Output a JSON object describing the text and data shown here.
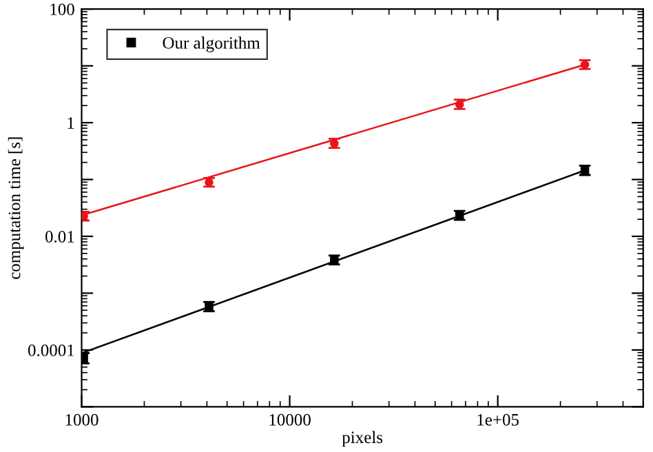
{
  "chart_data": {
    "type": "scatter",
    "xlabel": "pixels",
    "ylabel": "computation time [s]",
    "log": "xy",
    "grid": false,
    "legend": "top left",
    "xlim": [
      1000,
      500000
    ],
    "xticks": [
      1000,
      10000,
      {
        "value": 100000,
        "label": "1e+05"
      }
    ],
    "ylim": [
      1e-05,
      100
    ],
    "yticks": [
      {
        "value": 1e-05,
        "label": null
      },
      0.0001,
      {
        "value": 0.001,
        "label": null
      },
      0.01,
      {
        "value": 0.1,
        "label": null
      },
      1,
      {
        "value": 10,
        "label": null
      },
      100
    ],
    "series": [
      {
        "color": "#e8141c",
        "marker": "circle",
        "x": [
          1024,
          4096,
          16384,
          65536,
          262144
        ],
        "values": [
          0.0227,
          0.089,
          0.43,
          2.1,
          10.5
        ],
        "errors": [
          [
            0.019,
            0.027
          ],
          [
            0.075,
            0.106
          ],
          [
            0.36,
            0.52
          ],
          [
            1.75,
            2.55
          ],
          [
            8.8,
            12.6
          ]
        ]
      },
      {
        "name": "Our algorithm",
        "color": "#000000",
        "marker": "square",
        "x": [
          1024,
          4096,
          16384,
          65536,
          262144
        ],
        "values": [
          7.2e-05,
          0.00058,
          0.0038,
          0.0234,
          0.145
        ],
        "errors": [
          [
            5.8e-05,
            8.8e-05
          ],
          [
            0.00048,
            0.0007
          ],
          [
            0.0032,
            0.0046
          ],
          [
            0.0195,
            0.028
          ],
          [
            0.12,
            0.175
          ]
        ]
      },
      {
        "type": "line",
        "color": "#e8141c",
        "marker": "none",
        "x": [
          1000,
          262144
        ],
        "values": [
          0.0234,
          10.5
        ]
      },
      {
        "type": "line",
        "color": "#000000",
        "marker": "none",
        "x": [
          1000,
          262144
        ],
        "values": [
          8.8e-05,
          0.145
        ]
      }
    ]
  }
}
